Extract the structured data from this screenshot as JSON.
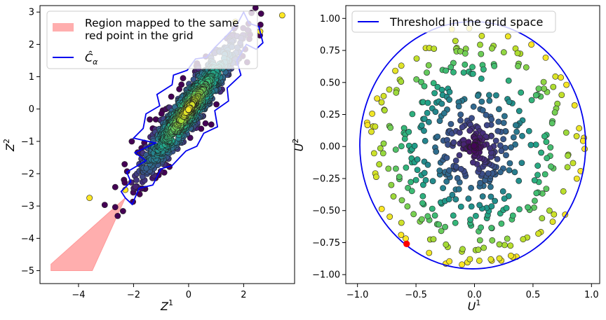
{
  "chart_data": [
    {
      "type": "scatter",
      "panel": "left",
      "xlabel": "Z",
      "xlabel_sup": "1",
      "ylabel": "Z",
      "ylabel_sup": "2",
      "xlim": [
        -5.4,
        3.85
      ],
      "ylim": [
        -5.4,
        3.2
      ],
      "xticks": [
        -4,
        -2,
        0,
        2
      ],
      "xtick_labels": [
        "−4",
        "−2",
        "0",
        "2"
      ],
      "yticks": [
        -5,
        -4,
        -3,
        -2,
        -1,
        0,
        1,
        2,
        3
      ],
      "ytick_labels": [
        "−5",
        "−4",
        "−3",
        "−2",
        "−1",
        "0",
        "1",
        "2",
        "3"
      ],
      "legend": {
        "placement": "top-left",
        "entries": [
          {
            "label_line1": "Region mapped to the same",
            "label_line2": "red point in the grid",
            "kind": "patch",
            "color": "#ff9a9a"
          },
          {
            "label": "Ĉ",
            "label_sub": "α",
            "kind": "line",
            "color": "#0000ee"
          }
        ]
      },
      "region_polygon": [
        [
          -5,
          -5
        ],
        [
          -3.5,
          -5
        ],
        [
          -2.3,
          -2.75
        ],
        [
          -5,
          -4.8
        ]
      ],
      "region_color": "#ff9a9a",
      "contour_color": "#0000ee",
      "contour": [
        [
          -2.45,
          -2.55
        ],
        [
          -2.1,
          -2.25
        ],
        [
          -2.25,
          -1.95
        ],
        [
          -1.55,
          -1.6
        ],
        [
          -1.95,
          -1.35
        ],
        [
          -1.2,
          -1.05
        ],
        [
          -2.0,
          -0.9
        ],
        [
          -1.65,
          -0.6
        ],
        [
          -1.55,
          -0.15
        ],
        [
          -1.05,
          0.1
        ],
        [
          -1.15,
          0.45
        ],
        [
          -0.6,
          0.75
        ],
        [
          -0.55,
          1.05
        ],
        [
          -0.05,
          1.2
        ],
        [
          0.25,
          1.55
        ],
        [
          0.65,
          1.6
        ],
        [
          0.95,
          1.9
        ],
        [
          1.3,
          2.2
        ],
        [
          1.75,
          2.6
        ],
        [
          2.0,
          3.0
        ],
        [
          2.2,
          2.65
        ],
        [
          2.55,
          2.55
        ],
        [
          2.7,
          2.05
        ],
        [
          2.45,
          1.85
        ],
        [
          2.1,
          2.0
        ],
        [
          1.75,
          1.5
        ],
        [
          1.9,
          1.05
        ],
        [
          1.4,
          0.65
        ],
        [
          1.45,
          0.25
        ],
        [
          0.95,
          -0.05
        ],
        [
          1.05,
          -0.55
        ],
        [
          0.55,
          -0.75
        ],
        [
          0.3,
          -1.15
        ],
        [
          -0.1,
          -1.3
        ],
        [
          -0.6,
          -1.75
        ],
        [
          -1.0,
          -1.85
        ],
        [
          -1.3,
          -2.35
        ],
        [
          -1.8,
          -2.45
        ],
        [
          -2.05,
          -2.95
        ],
        [
          -2.3,
          -2.75
        ]
      ],
      "n_points": 1000,
      "color_scale": "viridis (dark purple near center, yellow in tails)"
    },
    {
      "type": "scatter",
      "panel": "right",
      "xlabel": "U",
      "xlabel_sup": "1",
      "ylabel": "U",
      "ylabel_sup": "2",
      "xlim": [
        -1.1,
        1.07
      ],
      "ylim": [
        -1.07,
        1.1
      ],
      "xticks": [
        -1.0,
        -0.5,
        0.0,
        0.5,
        1.0
      ],
      "xtick_labels": [
        "−1.0",
        "−0.5",
        "0.0",
        "0.5",
        "1.0"
      ],
      "yticks": [
        -1.0,
        -0.75,
        -0.5,
        -0.25,
        0.0,
        0.25,
        0.5,
        0.75,
        1.0
      ],
      "ytick_labels": [
        "−1.00",
        "−0.75",
        "−0.50",
        "−0.25",
        "0.00",
        "0.25",
        "0.50",
        "0.75",
        "1.00"
      ],
      "legend": {
        "placement": "top-left",
        "entries": [
          {
            "label": "Threshold in the grid space",
            "kind": "line",
            "color": "#0000ee"
          }
        ]
      },
      "threshold_circle": {
        "cx": -0.015,
        "cy": 0.01,
        "r": 0.965,
        "color": "#0000ee"
      },
      "red_point": {
        "x": -0.58,
        "y": -0.76,
        "color": "#ff0000"
      },
      "n_points": 500,
      "color_scale": "viridis by radius (dark purple at center, yellow at rim)"
    }
  ]
}
